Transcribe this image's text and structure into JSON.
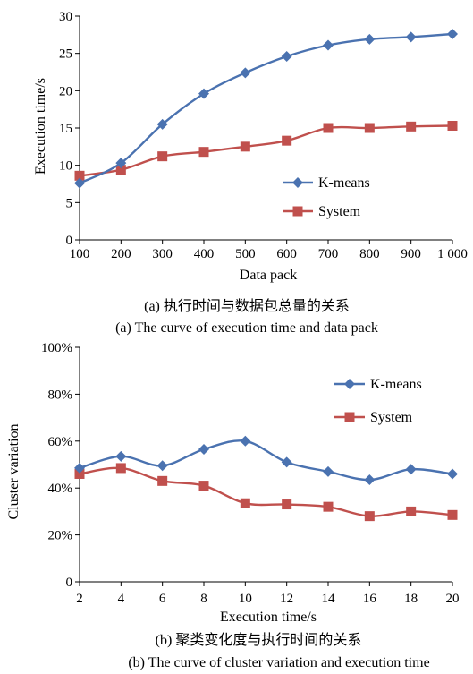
{
  "charts": [
    {
      "caption_cn": "(a) 执行时间与数据包总量的关系",
      "caption_en": "(a) The curve of execution time and data pack",
      "legend": [
        "K-means",
        "System"
      ]
    },
    {
      "caption_cn": "(b) 聚类变化度与执行时间的关系",
      "caption_en": "(b) The curve of cluster variation and execution time",
      "legend": [
        "K-means",
        "System"
      ]
    }
  ],
  "colors": {
    "kmeans": "#4a72b0",
    "system": "#c0504d"
  },
  "chart_data": [
    {
      "type": "line",
      "title": "",
      "xlabel": "Data pack",
      "ylabel": "Execution time/s",
      "x": [
        100,
        200,
        300,
        400,
        500,
        600,
        700,
        800,
        900,
        1000
      ],
      "xtick_labels": [
        "100",
        "200",
        "300",
        "400",
        "500",
        "600",
        "700",
        "800",
        "900",
        "1 000"
      ],
      "ylim": [
        0,
        30
      ],
      "ytick_labels": [
        "0",
        "5",
        "10",
        "15",
        "20",
        "25",
        "30"
      ],
      "grid": false,
      "legend_position": "center-right",
      "series": [
        {
          "name": "K-means",
          "marker": "diamond",
          "values": [
            7.6,
            10.3,
            15.5,
            19.6,
            22.4,
            24.6,
            26.1,
            26.9,
            27.2,
            27.6
          ]
        },
        {
          "name": "System",
          "marker": "square",
          "values": [
            8.6,
            9.4,
            11.2,
            11.8,
            12.5,
            13.3,
            15.0,
            15.0,
            15.2,
            15.3
          ]
        }
      ]
    },
    {
      "type": "line",
      "title": "",
      "xlabel": "Execution time/s",
      "ylabel": "Cluster variation",
      "x": [
        2,
        4,
        6,
        8,
        10,
        12,
        14,
        16,
        18,
        20
      ],
      "xtick_labels": [
        "2",
        "4",
        "6",
        "8",
        "10",
        "12",
        "14",
        "16",
        "18",
        "20"
      ],
      "ylim": [
        0,
        100
      ],
      "ytick_labels": [
        "0",
        "20%",
        "40%",
        "60%",
        "80%",
        "100%"
      ],
      "grid": false,
      "legend_position": "top-right",
      "series": [
        {
          "name": "K-means",
          "marker": "diamond",
          "values": [
            48.5,
            53.5,
            49.5,
            56.5,
            60.0,
            51.0,
            47.0,
            43.5,
            48.0,
            46.0
          ]
        },
        {
          "name": "System",
          "marker": "square",
          "values": [
            46.0,
            48.5,
            43.0,
            41.0,
            33.5,
            33.0,
            32.0,
            28.0,
            30.0,
            28.5
          ]
        }
      ]
    }
  ]
}
